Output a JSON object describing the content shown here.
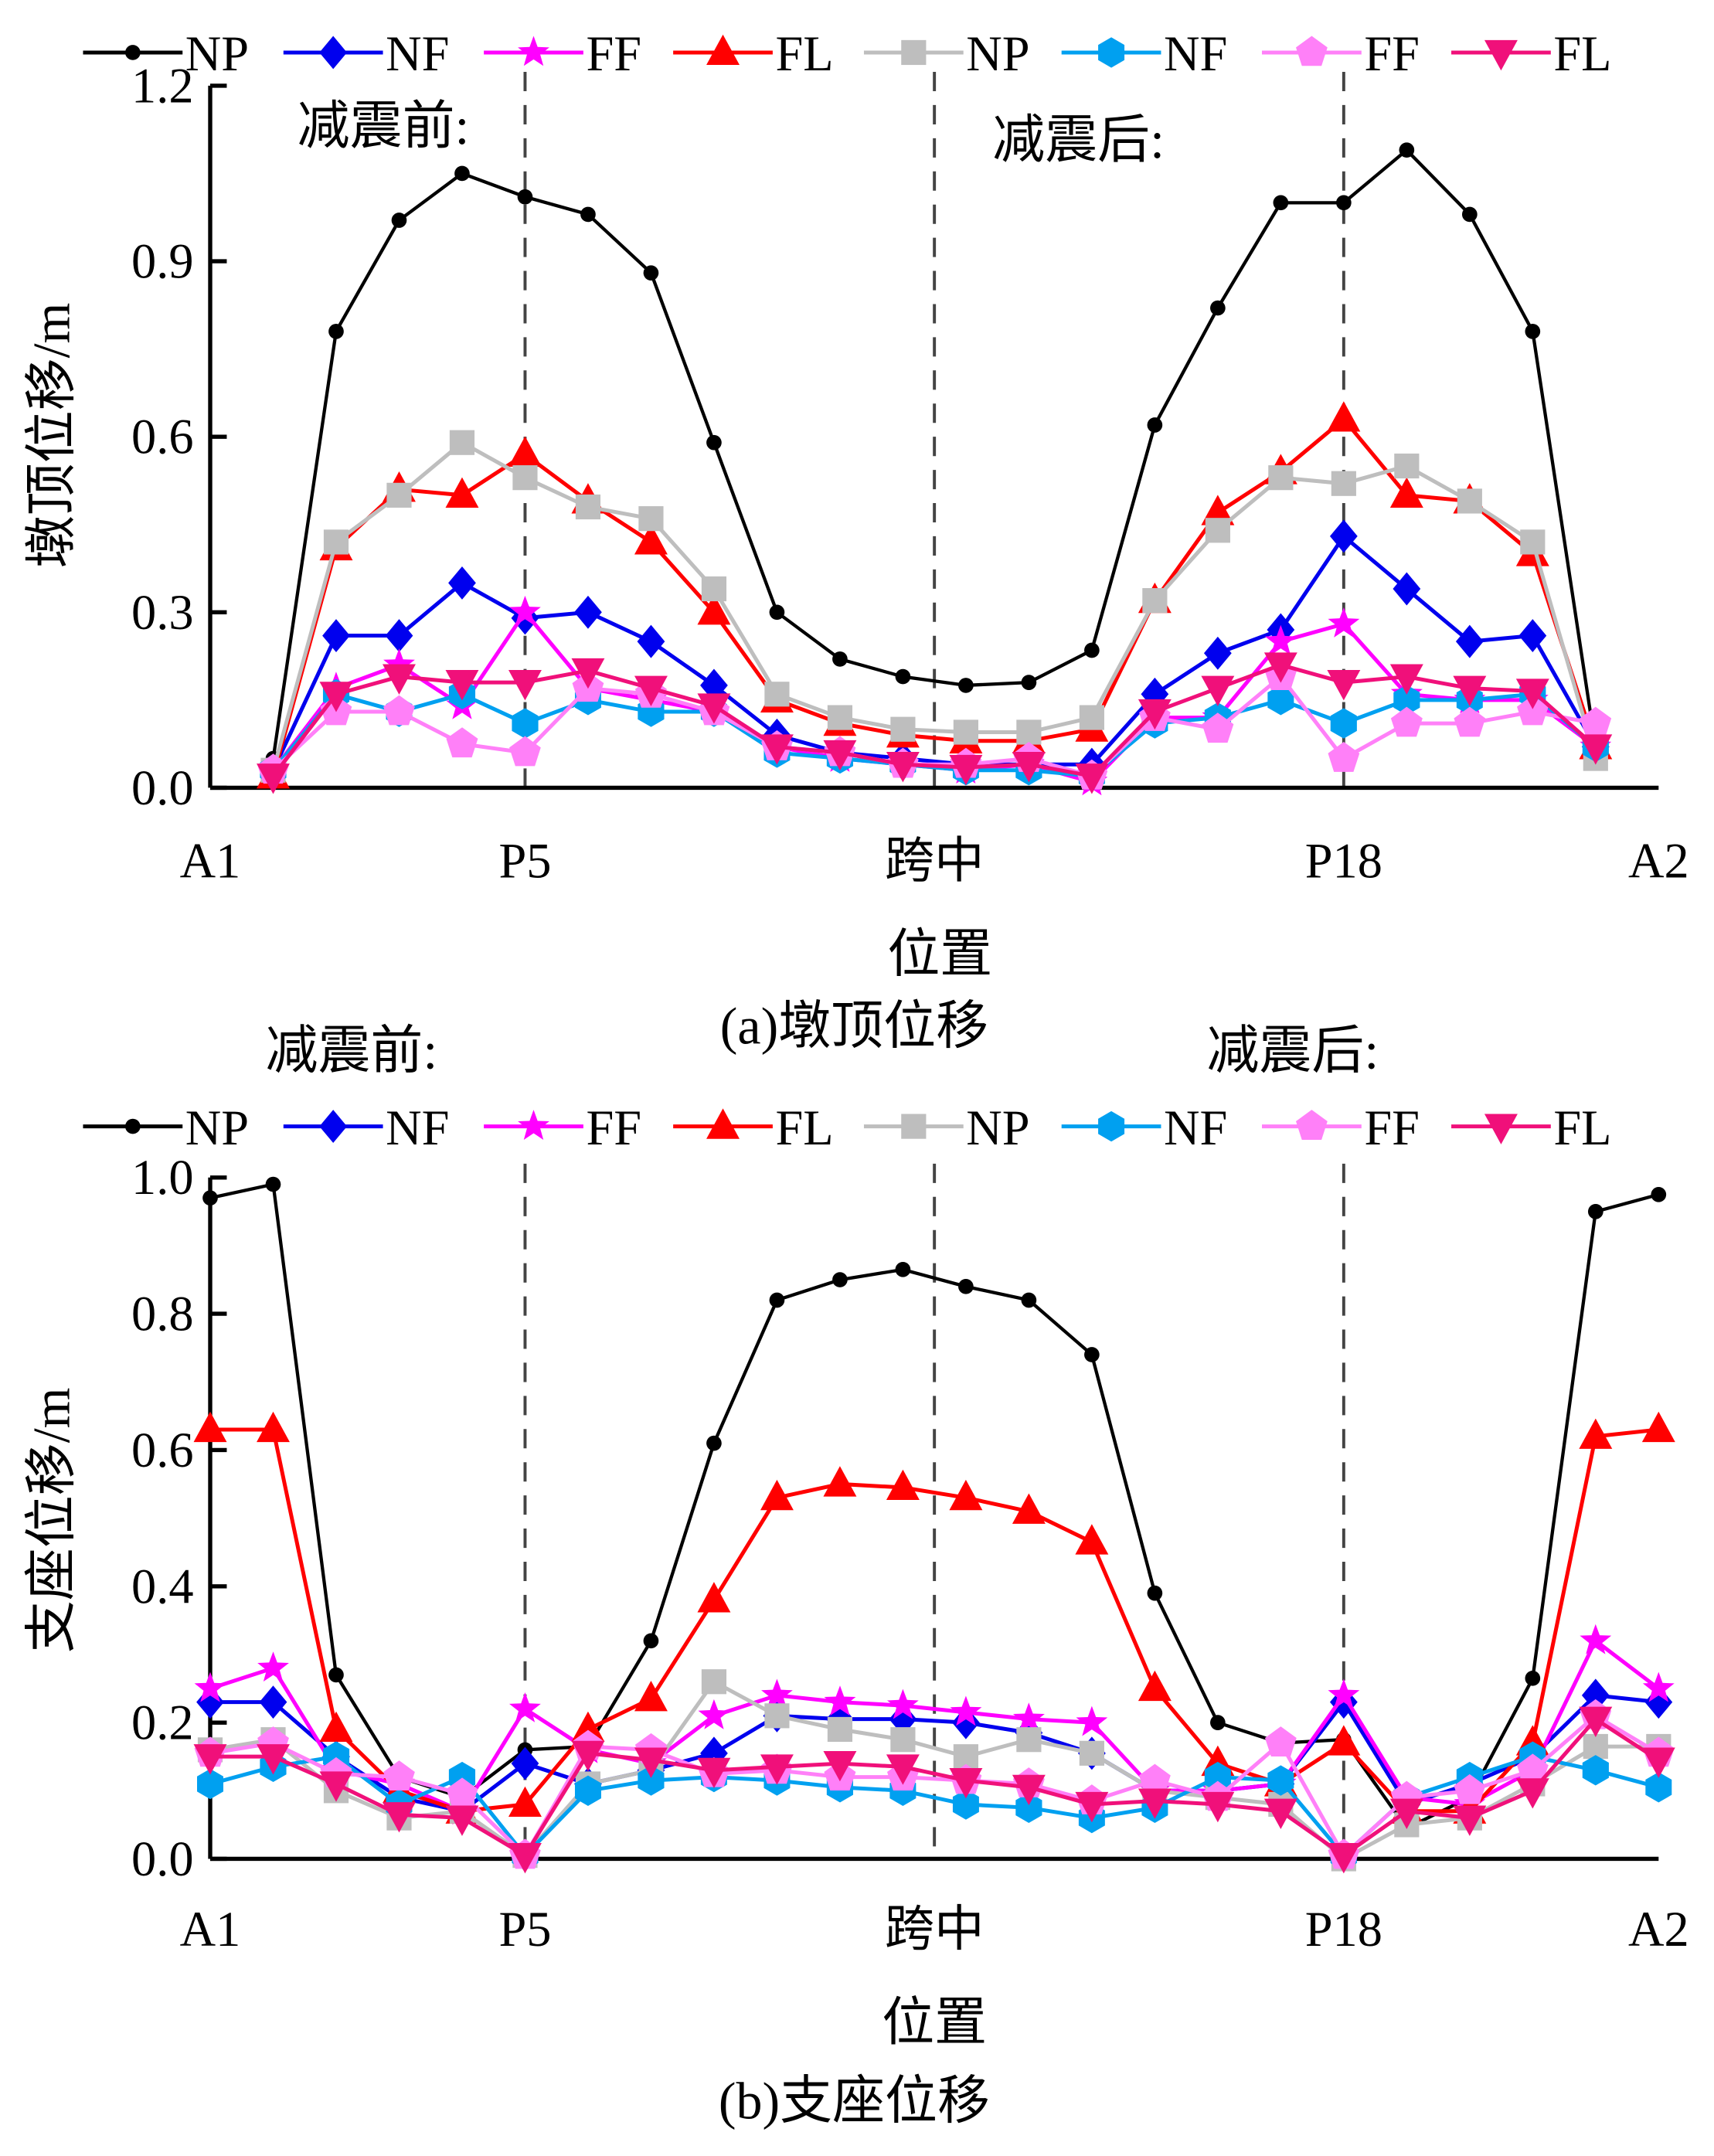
{
  "series_style": [
    {
      "name": "NP",
      "color": "#000000",
      "marker": "circle"
    },
    {
      "name": "NF",
      "color": "#0000EE",
      "marker": "diamond"
    },
    {
      "name": "FF",
      "color": "#FF00FF",
      "marker": "star"
    },
    {
      "name": "FL",
      "color": "#FF0000",
      "marker": "triangle-up"
    },
    {
      "name": "NP",
      "color": "#BEBEBE",
      "marker": "square"
    },
    {
      "name": "NF",
      "color": "#00A0F0",
      "marker": "hexagon"
    },
    {
      "name": "FF",
      "color": "#FF80F8",
      "marker": "pentagon"
    },
    {
      "name": "FL",
      "color": "#F0107A",
      "marker": "triangle-down"
    }
  ],
  "chart_data": [
    {
      "type": "line",
      "caption": "(a)墩顶位移",
      "xlabel": "位置",
      "ylabel": "墩顶位移/m",
      "ylim": [
        0,
        1.2
      ],
      "yticks": [
        "0.0",
        "0.3",
        "0.6",
        "0.9",
        "1.2"
      ],
      "yticks_values": [
        0,
        0.3,
        0.6,
        0.9,
        1.2
      ],
      "xlim": [
        0,
        23
      ],
      "xticks": [
        {
          "label": "A1",
          "x": 0
        },
        {
          "label": "P5",
          "x": 5
        },
        {
          "label": "跨中",
          "x": 11.5
        },
        {
          "label": "P18",
          "x": 18
        },
        {
          "label": "A2",
          "x": 23
        }
      ],
      "reference_lines_x": [
        5,
        11.5,
        18
      ],
      "annotations": [
        "减震前:",
        "减震后:"
      ],
      "legend": "top",
      "x": [
        1,
        2,
        3,
        4,
        5,
        6,
        7,
        8,
        9,
        10,
        11,
        12,
        13,
        14,
        15,
        16,
        17,
        18,
        19,
        20,
        21,
        22
      ],
      "series": [
        {
          "name": "NP",
          "values": [
            0.05,
            0.78,
            0.97,
            1.05,
            1.01,
            0.98,
            0.88,
            0.59,
            0.3,
            0.22,
            0.19,
            0.175,
            0.18,
            0.235,
            0.62,
            0.82,
            1.0,
            1.0,
            1.09,
            0.98,
            0.78,
            0.07
          ]
        },
        {
          "name": "NF",
          "values": [
            0.03,
            0.26,
            0.26,
            0.35,
            0.29,
            0.3,
            0.25,
            0.175,
            0.09,
            0.06,
            0.05,
            0.04,
            0.04,
            0.04,
            0.16,
            0.23,
            0.27,
            0.43,
            0.34,
            0.25,
            0.26,
            0.07
          ]
        },
        {
          "name": "FF",
          "values": [
            0.03,
            0.17,
            0.21,
            0.14,
            0.3,
            0.17,
            0.15,
            0.13,
            0.07,
            0.05,
            0.04,
            0.03,
            0.04,
            0.01,
            0.12,
            0.12,
            0.25,
            0.28,
            0.16,
            0.15,
            0.15,
            0.07
          ]
        },
        {
          "name": "FL",
          "values": [
            0.02,
            0.41,
            0.51,
            0.5,
            0.57,
            0.49,
            0.42,
            0.3,
            0.15,
            0.11,
            0.09,
            0.08,
            0.08,
            0.1,
            0.32,
            0.47,
            0.54,
            0.63,
            0.5,
            0.49,
            0.4,
            0.07
          ]
        },
        {
          "name": "NP",
          "values": [
            0.03,
            0.42,
            0.5,
            0.59,
            0.53,
            0.48,
            0.46,
            0.34,
            0.16,
            0.12,
            0.1,
            0.095,
            0.095,
            0.12,
            0.32,
            0.44,
            0.53,
            0.52,
            0.55,
            0.49,
            0.42,
            0.05
          ]
        },
        {
          "name": "NF",
          "values": [
            0.03,
            0.16,
            0.13,
            0.16,
            0.11,
            0.15,
            0.13,
            0.13,
            0.06,
            0.05,
            0.04,
            0.03,
            0.03,
            0.02,
            0.11,
            0.12,
            0.15,
            0.11,
            0.15,
            0.15,
            0.16,
            0.07
          ]
        },
        {
          "name": "FF",
          "values": [
            0.03,
            0.13,
            0.13,
            0.075,
            0.06,
            0.17,
            0.16,
            0.13,
            0.07,
            0.06,
            0.04,
            0.04,
            0.05,
            0.02,
            0.12,
            0.1,
            0.19,
            0.05,
            0.11,
            0.11,
            0.13,
            0.11
          ]
        },
        {
          "name": "FL",
          "values": [
            0.02,
            0.16,
            0.19,
            0.18,
            0.18,
            0.2,
            0.17,
            0.14,
            0.07,
            0.06,
            0.04,
            0.035,
            0.04,
            0.02,
            0.13,
            0.17,
            0.21,
            0.18,
            0.19,
            0.17,
            0.165,
            0.07
          ]
        }
      ]
    },
    {
      "type": "line",
      "caption": "(b)支座位移",
      "xlabel": "位置",
      "ylabel": "支座位移/m",
      "ylim": [
        0,
        1.0
      ],
      "yticks": [
        "0.0",
        "0.2",
        "0.4",
        "0.6",
        "0.8",
        "1.0"
      ],
      "yticks_values": [
        0,
        0.2,
        0.4,
        0.6,
        0.8,
        1.0
      ],
      "xlim": [
        0,
        23
      ],
      "xticks": [
        {
          "label": "A1",
          "x": 0
        },
        {
          "label": "P5",
          "x": 5
        },
        {
          "label": "跨中",
          "x": 11.5
        },
        {
          "label": "P18",
          "x": 18
        },
        {
          "label": "A2",
          "x": 23
        }
      ],
      "reference_lines_x": [
        5,
        11.5,
        18
      ],
      "annotations": [
        "减震前:",
        "减震后:"
      ],
      "legend": "top",
      "x": [
        0,
        1,
        2,
        3,
        4,
        5,
        6,
        7,
        8,
        9,
        10,
        11,
        12,
        13,
        14,
        15,
        16,
        17,
        18,
        19,
        20,
        21,
        22,
        23
      ],
      "series": [
        {
          "name": "NP",
          "values": [
            0.97,
            0.99,
            0.27,
            0.12,
            0.09,
            0.16,
            0.165,
            0.32,
            0.61,
            0.82,
            0.85,
            0.865,
            0.84,
            0.82,
            0.74,
            0.39,
            0.2,
            0.17,
            0.175,
            0.045,
            0.09,
            0.265,
            0.95,
            0.975
          ]
        },
        {
          "name": "NF",
          "values": [
            0.23,
            0.23,
            0.15,
            0.09,
            0.07,
            0.14,
            0.11,
            0.13,
            0.155,
            0.21,
            0.205,
            0.205,
            0.2,
            0.185,
            0.155,
            0.1,
            0.1,
            0.11,
            0.23,
            0.08,
            0.11,
            0.15,
            0.24,
            0.23
          ]
        },
        {
          "name": "FF",
          "values": [
            0.25,
            0.28,
            0.13,
            0.11,
            0.07,
            0.22,
            0.16,
            0.14,
            0.21,
            0.24,
            0.23,
            0.225,
            0.215,
            0.205,
            0.2,
            0.1,
            0.1,
            0.11,
            0.24,
            0.09,
            0.08,
            0.13,
            0.32,
            0.25
          ]
        },
        {
          "name": "FL",
          "values": [
            0.63,
            0.63,
            0.19,
            0.1,
            0.07,
            0.08,
            0.19,
            0.235,
            0.38,
            0.53,
            0.55,
            0.545,
            0.53,
            0.51,
            0.465,
            0.25,
            0.14,
            0.11,
            0.17,
            0.07,
            0.07,
            0.17,
            0.62,
            0.63
          ]
        },
        {
          "name": "NP",
          "values": [
            0.16,
            0.175,
            0.1,
            0.06,
            0.07,
            0.005,
            0.11,
            0.13,
            0.26,
            0.21,
            0.19,
            0.175,
            0.15,
            0.175,
            0.155,
            0.1,
            0.09,
            0.08,
            0.0,
            0.05,
            0.06,
            0.11,
            0.165,
            0.165
          ]
        },
        {
          "name": "NF",
          "values": [
            0.11,
            0.135,
            0.15,
            0.08,
            0.12,
            0.005,
            0.1,
            0.115,
            0.12,
            0.115,
            0.105,
            0.1,
            0.08,
            0.075,
            0.06,
            0.075,
            0.12,
            0.115,
            0.005,
            0.09,
            0.12,
            0.15,
            0.13,
            0.105
          ]
        },
        {
          "name": "FF",
          "values": [
            0.155,
            0.17,
            0.125,
            0.12,
            0.095,
            0.005,
            0.165,
            0.16,
            0.125,
            0.13,
            0.12,
            0.12,
            0.115,
            0.11,
            0.085,
            0.115,
            0.09,
            0.17,
            0.005,
            0.09,
            0.1,
            0.13,
            0.21,
            0.155
          ]
        },
        {
          "name": "FL",
          "values": [
            0.15,
            0.15,
            0.11,
            0.065,
            0.06,
            0.005,
            0.155,
            0.145,
            0.13,
            0.135,
            0.14,
            0.135,
            0.115,
            0.105,
            0.08,
            0.085,
            0.08,
            0.07,
            0.005,
            0.07,
            0.06,
            0.1,
            0.205,
            0.145
          ]
        }
      ]
    }
  ]
}
